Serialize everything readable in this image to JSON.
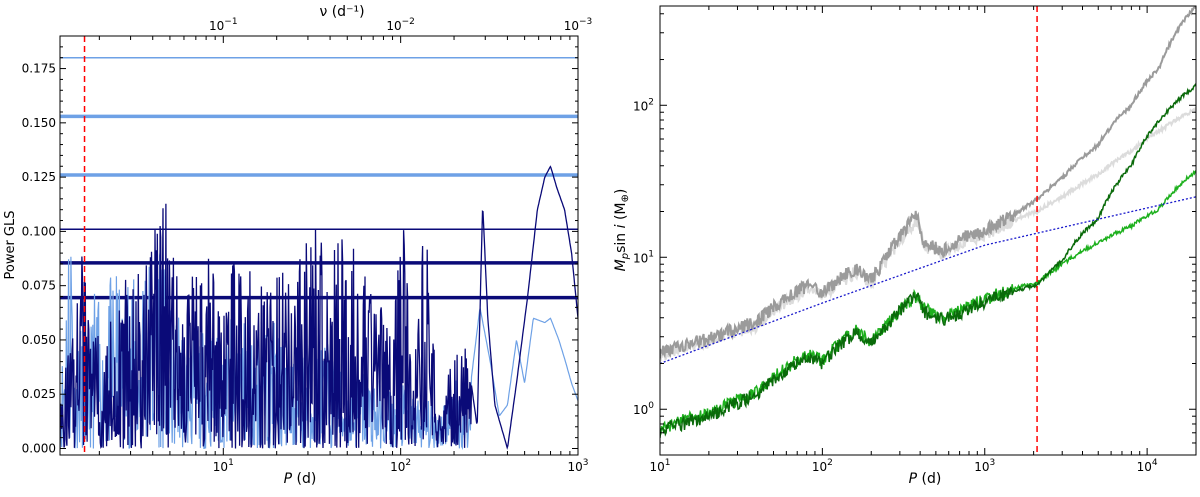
{
  "chart_data": [
    {
      "type": "line",
      "xlabel": "P (d)",
      "xlabel_parts": [
        "P",
        " (d)"
      ],
      "ylabel": "Power GLS",
      "top_axis_label": "ν (d⁻¹)",
      "x_scale": "log",
      "xlim": [
        1.2,
        1000
      ],
      "ylim": [
        -0.003,
        0.19
      ],
      "x_tick_labels": [
        {
          "base": "10",
          "exp": "1",
          "value": 10
        },
        {
          "base": "10",
          "exp": "2",
          "value": 100
        },
        {
          "base": "10",
          "exp": "3",
          "value": 1000
        }
      ],
      "top_tick_labels": [
        {
          "base": "10",
          "exp": "−1",
          "value": 10
        },
        {
          "base": "10",
          "exp": "−2",
          "value": 100
        },
        {
          "base": "10",
          "exp": "−3",
          "value": 1000
        }
      ],
      "y_ticks": [
        0.0,
        0.025,
        0.05,
        0.075,
        0.1,
        0.125,
        0.15,
        0.175
      ],
      "y_tick_labels": [
        "0.000",
        "0.025",
        "0.050",
        "0.075",
        "0.100",
        "0.125",
        "0.150",
        "0.175"
      ],
      "vertical_line": {
        "x": 1.65,
        "color": "#ff0000",
        "style": "dashed"
      },
      "light_thresholds": [
        0.18,
        0.153,
        0.126
      ],
      "dark_thresholds": [
        0.101,
        0.0855,
        0.0695
      ],
      "series": [
        {
          "color": "#6ea1e6",
          "points": [
            [
              1.2,
              0.02
            ],
            [
              1.3,
              0.09
            ],
            [
              1.4,
              0.14
            ],
            [
              1.45,
              0.03
            ],
            [
              1.55,
              0.06
            ],
            [
              1.7,
              0.04
            ],
            [
              1.9,
              0.08
            ],
            [
              2.1,
              0.05
            ],
            [
              2.4,
              0.09
            ],
            [
              2.7,
              0.07
            ],
            [
              3.0,
              0.1
            ],
            [
              3.3,
              0.05
            ],
            [
              3.6,
              0.11
            ],
            [
              4.0,
              0.08
            ],
            [
              4.4,
              0.125
            ],
            [
              4.8,
              0.06
            ],
            [
              5.5,
              0.07
            ],
            [
              6.5,
              0.05
            ],
            [
              8,
              0.06
            ],
            [
              10,
              0.05
            ],
            [
              12,
              0.07
            ],
            [
              15,
              0.05
            ],
            [
              20,
              0.06
            ],
            [
              25,
              0.04
            ],
            [
              30,
              0.05
            ],
            [
              40,
              0.05
            ],
            [
              50,
              0.03
            ],
            [
              60,
              0.04
            ],
            [
              80,
              0.03
            ],
            [
              100,
              0.03
            ],
            [
              130,
              0.025
            ],
            [
              160,
              0.02
            ],
            [
              200,
              0.035
            ],
            [
              240,
              0.02
            ],
            [
              280,
              0.065
            ],
            [
              320,
              0.04
            ],
            [
              360,
              0.015
            ],
            [
              400,
              0.02
            ],
            [
              450,
              0.05
            ],
            [
              500,
              0.03
            ],
            [
              560,
              0.06
            ],
            [
              650,
              0.058
            ],
            [
              700,
              0.06
            ],
            [
              780,
              0.05
            ],
            [
              850,
              0.04
            ],
            [
              920,
              0.03
            ],
            [
              1000,
              0.022
            ]
          ]
        },
        {
          "color": "#0a0a78",
          "points": [
            [
              1.2,
              0.03
            ],
            [
              1.4,
              0.05
            ],
            [
              1.6,
              0.09
            ],
            [
              1.8,
              0.06
            ],
            [
              2.0,
              0.07
            ],
            [
              2.5,
              0.06
            ],
            [
              3.0,
              0.09
            ],
            [
              3.5,
              0.08
            ],
            [
              4.0,
              0.1
            ],
            [
              4.5,
              0.11
            ],
            [
              5.0,
              0.12
            ],
            [
              5.5,
              0.09
            ],
            [
              6.5,
              0.08
            ],
            [
              8,
              0.09
            ],
            [
              10,
              0.08
            ],
            [
              12,
              0.09
            ],
            [
              15,
              0.08
            ],
            [
              20,
              0.09
            ],
            [
              25,
              0.08
            ],
            [
              30,
              0.11
            ],
            [
              40,
              0.09
            ],
            [
              50,
              0.1
            ],
            [
              70,
              0.07
            ],
            [
              90,
              0.06
            ],
            [
              105,
              0.12
            ],
            [
              115,
              0.03
            ],
            [
              130,
              0.09
            ],
            [
              145,
              0.11
            ],
            [
              160,
              0.01
            ],
            [
              190,
              0.04
            ],
            [
              230,
              0.05
            ],
            [
              250,
              0.03
            ],
            [
              270,
              0.01
            ],
            [
              290,
              0.113
            ],
            [
              310,
              0.06
            ],
            [
              340,
              0.02
            ],
            [
              400,
              0.0
            ],
            [
              450,
              0.03
            ],
            [
              520,
              0.07
            ],
            [
              590,
              0.11
            ],
            [
              650,
              0.125
            ],
            [
              700,
              0.13
            ],
            [
              760,
              0.12
            ],
            [
              840,
              0.11
            ],
            [
              920,
              0.09
            ],
            [
              1000,
              0.06
            ]
          ]
        }
      ]
    },
    {
      "type": "line",
      "xlabel": "P (d)",
      "xlabel_parts": [
        "P",
        " (d)"
      ],
      "ylabel": "Mp sin i (M⊕)",
      "ylabel_parts": {
        "m": "M",
        "sub": "p",
        "sin": "sin ",
        "i": "i",
        "unit": " (M",
        "earth": "⊕",
        "close": ")"
      },
      "x_scale": "log",
      "y_scale": "log",
      "xlim": [
        10,
        20000
      ],
      "ylim": [
        0.5,
        450
      ],
      "x_tick_labels": [
        {
          "base": "10",
          "exp": "1",
          "value": 10
        },
        {
          "base": "10",
          "exp": "2",
          "value": 100
        },
        {
          "base": "10",
          "exp": "3",
          "value": 1000
        },
        {
          "base": "10",
          "exp": "4",
          "value": 10000
        }
      ],
      "y_tick_labels": [
        {
          "base": "10",
          "exp": "0",
          "value": 1
        },
        {
          "base": "10",
          "exp": "1",
          "value": 10
        },
        {
          "base": "10",
          "exp": "2",
          "value": 100
        }
      ],
      "vertical_line": {
        "x": 2100,
        "color": "#ff0000",
        "style": "dashed"
      },
      "series": [
        {
          "color": "#dcdcdc",
          "width": 2,
          "points": [
            [
              10,
              2.3
            ],
            [
              20,
              2.8
            ],
            [
              40,
              3.6
            ],
            [
              80,
              6.2
            ],
            [
              100,
              5.6
            ],
            [
              160,
              8.0
            ],
            [
              200,
              6.8
            ],
            [
              250,
              9.5
            ],
            [
              380,
              17.5
            ],
            [
              420,
              12.0
            ],
            [
              550,
              10.5
            ],
            [
              700,
              12.5
            ],
            [
              1000,
              14.0
            ],
            [
              1500,
              17.5
            ],
            [
              2100,
              20.0
            ],
            [
              3000,
              25.0
            ],
            [
              5000,
              35.0
            ],
            [
              8000,
              50.0
            ],
            [
              12000,
              68.0
            ],
            [
              20000,
              95.0
            ]
          ]
        },
        {
          "color": "#9b9b9b",
          "width": 2,
          "points": [
            [
              10,
              2.4
            ],
            [
              20,
              2.9
            ],
            [
              40,
              3.8
            ],
            [
              80,
              6.5
            ],
            [
              100,
              5.8
            ],
            [
              160,
              8.5
            ],
            [
              200,
              7.0
            ],
            [
              250,
              10.0
            ],
            [
              380,
              19.0
            ],
            [
              420,
              12.5
            ],
            [
              550,
              11.0
            ],
            [
              700,
              13.0
            ],
            [
              1000,
              15.0
            ],
            [
              1500,
              19.0
            ],
            [
              2100,
              24.0
            ],
            [
              3000,
              33.0
            ],
            [
              5000,
              55.0
            ],
            [
              8000,
              100.0
            ],
            [
              12000,
              180.0
            ],
            [
              20000,
              450.0
            ]
          ]
        },
        {
          "color": "#1db01d",
          "width": 1.5,
          "points": [
            [
              10,
              0.75
            ],
            [
              20,
              0.95
            ],
            [
              40,
              1.3
            ],
            [
              80,
              2.3
            ],
            [
              100,
              2.1
            ],
            [
              160,
              3.3
            ],
            [
              200,
              2.8
            ],
            [
              250,
              3.6
            ],
            [
              380,
              5.6
            ],
            [
              420,
              4.6
            ],
            [
              550,
              4.0
            ],
            [
              700,
              4.4
            ],
            [
              1000,
              5.3
            ],
            [
              1500,
              6.2
            ],
            [
              2100,
              6.8
            ],
            [
              3000,
              9.0
            ],
            [
              5000,
              12.5
            ],
            [
              8000,
              16.0
            ],
            [
              12000,
              21.0
            ],
            [
              20000,
              37.0
            ]
          ]
        },
        {
          "color": "#0a6a0a",
          "width": 1.5,
          "points": [
            [
              10,
              0.72
            ],
            [
              20,
              0.9
            ],
            [
              40,
              1.25
            ],
            [
              80,
              2.2
            ],
            [
              100,
              2.0
            ],
            [
              160,
              3.2
            ],
            [
              200,
              2.7
            ],
            [
              250,
              3.5
            ],
            [
              380,
              5.8
            ],
            [
              420,
              4.4
            ],
            [
              550,
              3.9
            ],
            [
              700,
              4.2
            ],
            [
              1000,
              5.1
            ],
            [
              1500,
              6.0
            ],
            [
              2100,
              6.5
            ],
            [
              3000,
              9.5
            ],
            [
              5000,
              18.0
            ],
            [
              8000,
              40.0
            ],
            [
              12000,
              80.0
            ],
            [
              20000,
              135.0
            ]
          ]
        },
        {
          "color": "#1a1acc",
          "width": 1.3,
          "dashed": true,
          "points": [
            [
              10,
              2.0
            ],
            [
              100,
              5.0
            ],
            [
              1000,
              12.0
            ],
            [
              20000,
              25.0
            ]
          ]
        }
      ]
    }
  ]
}
